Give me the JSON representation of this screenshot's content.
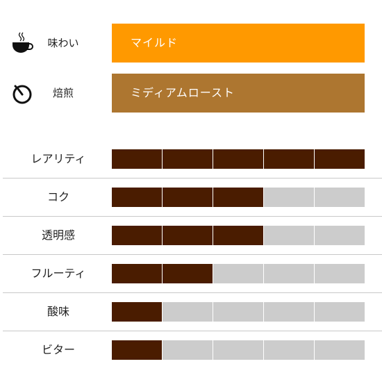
{
  "profile": {
    "flavor": {
      "label": "味わい",
      "value": "マイルド",
      "color": "#ff9900",
      "icon": "coffee-cup-icon"
    },
    "roast": {
      "label": "焙煎",
      "value": "ミディアムロースト",
      "color": "#ad7630",
      "icon": "stopwatch-icon"
    }
  },
  "scale_max": 5,
  "colors": {
    "filled": "#4a1c00",
    "empty": "#cccccc"
  },
  "attributes": [
    {
      "label": "レアリティ",
      "level": 5
    },
    {
      "label": "コク",
      "level": 3
    },
    {
      "label": "透明感",
      "level": 3
    },
    {
      "label": "フルーティ",
      "level": 2
    },
    {
      "label": "酸味",
      "level": 1
    },
    {
      "label": "ビター",
      "level": 1
    }
  ]
}
